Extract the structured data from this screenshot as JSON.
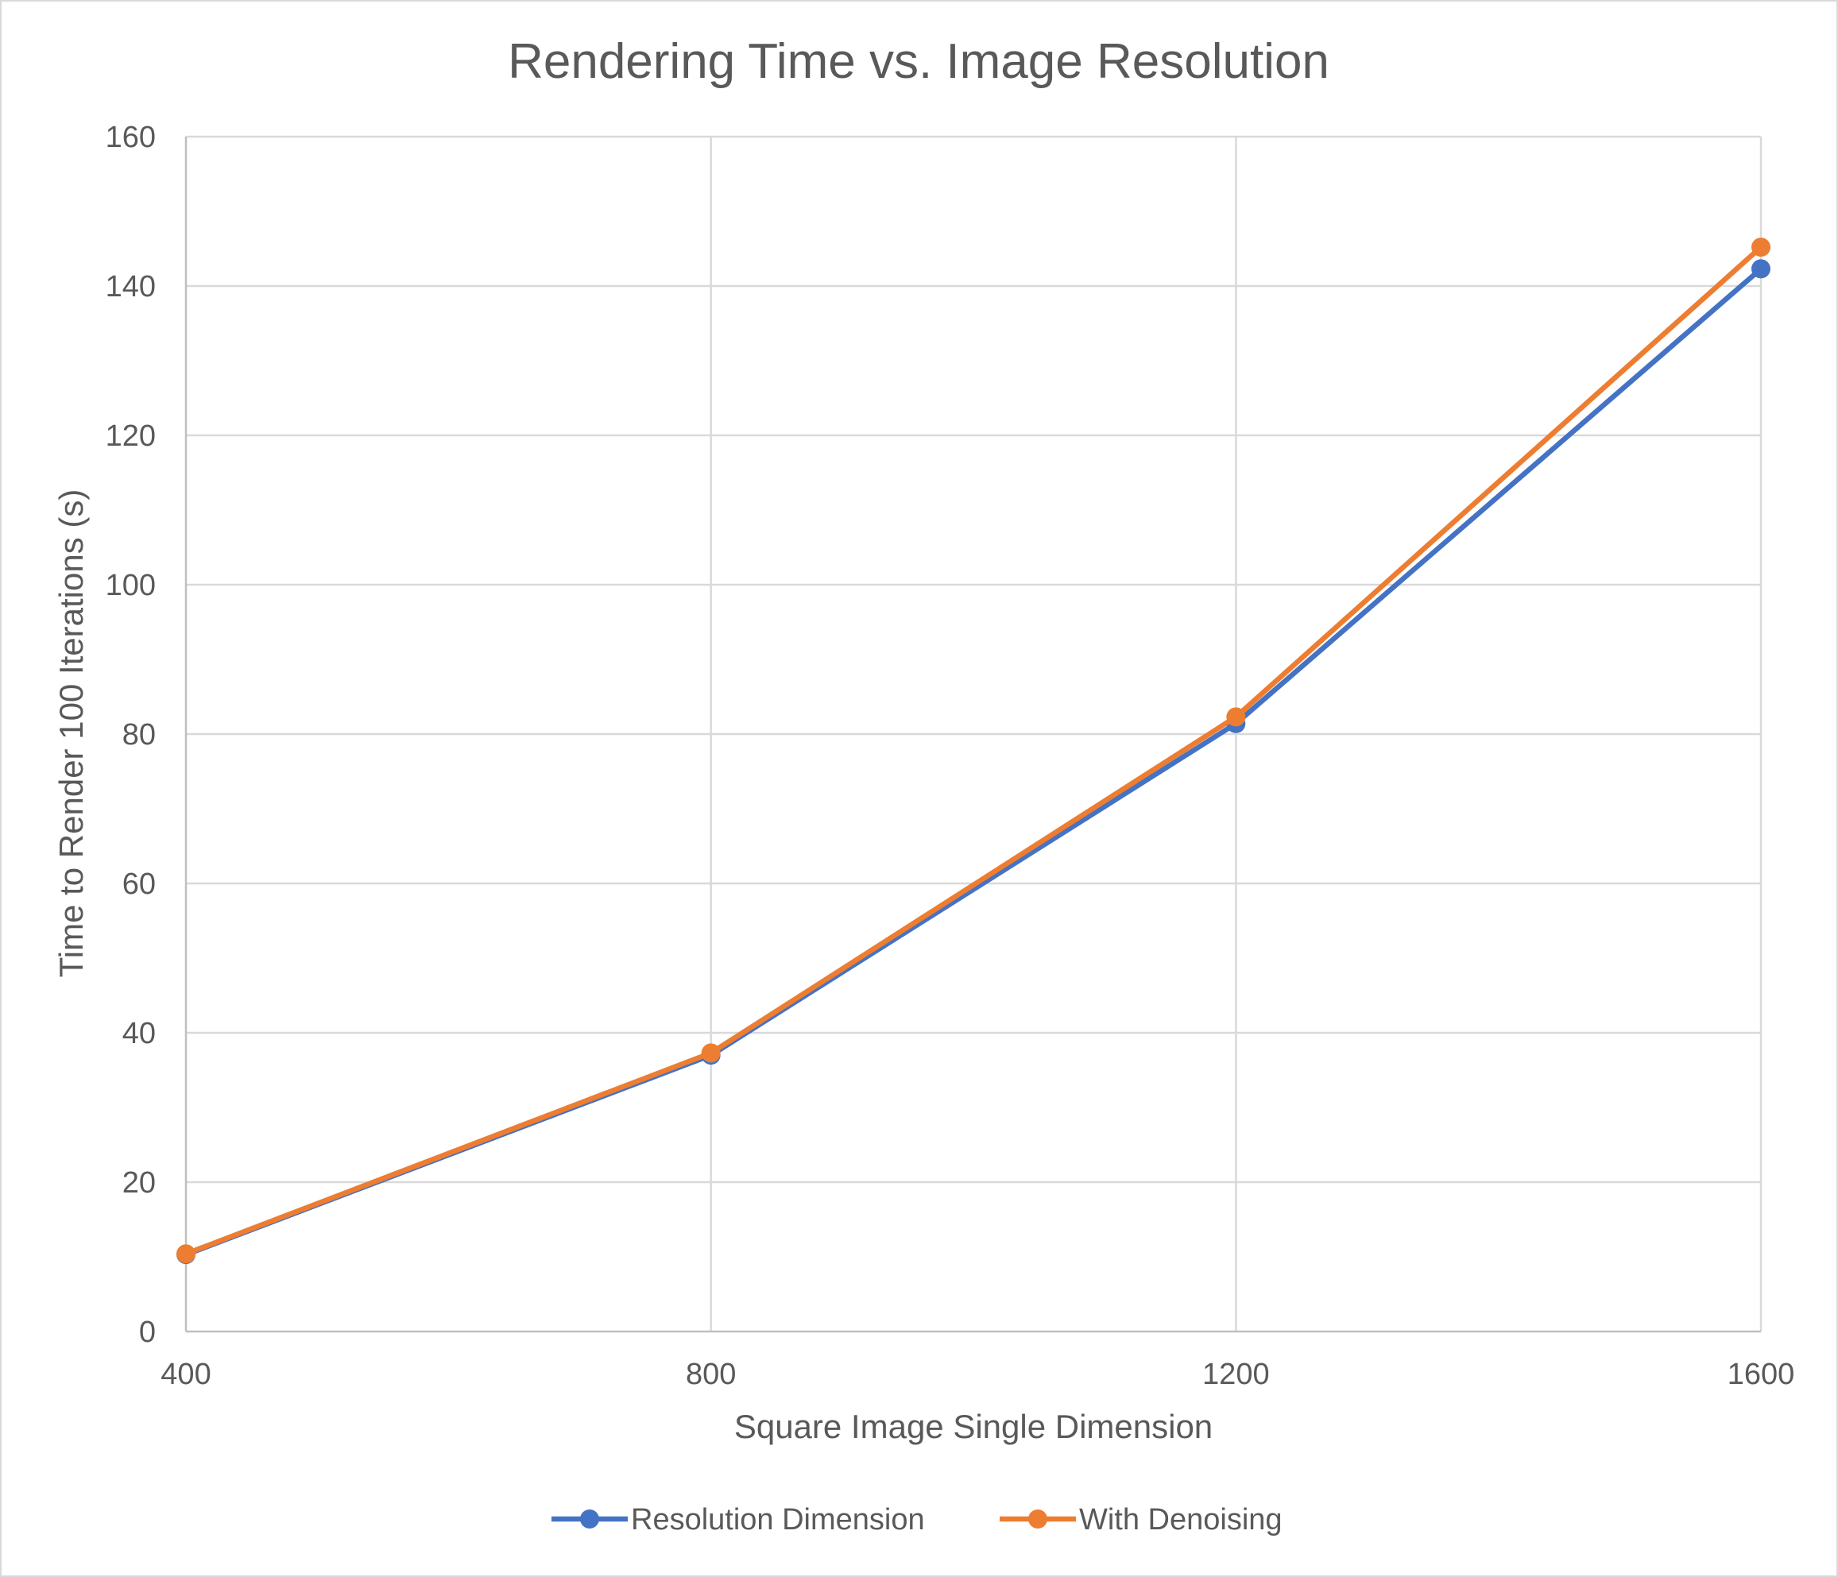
{
  "chart_data": {
    "type": "line",
    "title": "Rendering Time vs. Image Resolution",
    "xlabel": "Square Image Single Dimension",
    "ylabel": "Time to Render 100 Iterations (s)",
    "x": [
      400,
      800,
      1200,
      1600
    ],
    "x_tick_labels": [
      "400",
      "800",
      "1200",
      "1600"
    ],
    "y_tick_labels": [
      "0",
      "20",
      "40",
      "60",
      "80",
      "100",
      "120",
      "140",
      "160"
    ],
    "xlim": [
      400,
      1600
    ],
    "ylim": [
      0,
      160
    ],
    "grid": true,
    "legend_position": "bottom",
    "series": [
      {
        "name": "Resolution Dimension",
        "color": "#4472c4",
        "values": [
          10.3,
          37.0,
          81.4,
          142.3
        ]
      },
      {
        "name": "With Denoising",
        "color": "#ed7d31",
        "values": [
          10.4,
          37.3,
          82.3,
          145.2
        ]
      }
    ]
  }
}
